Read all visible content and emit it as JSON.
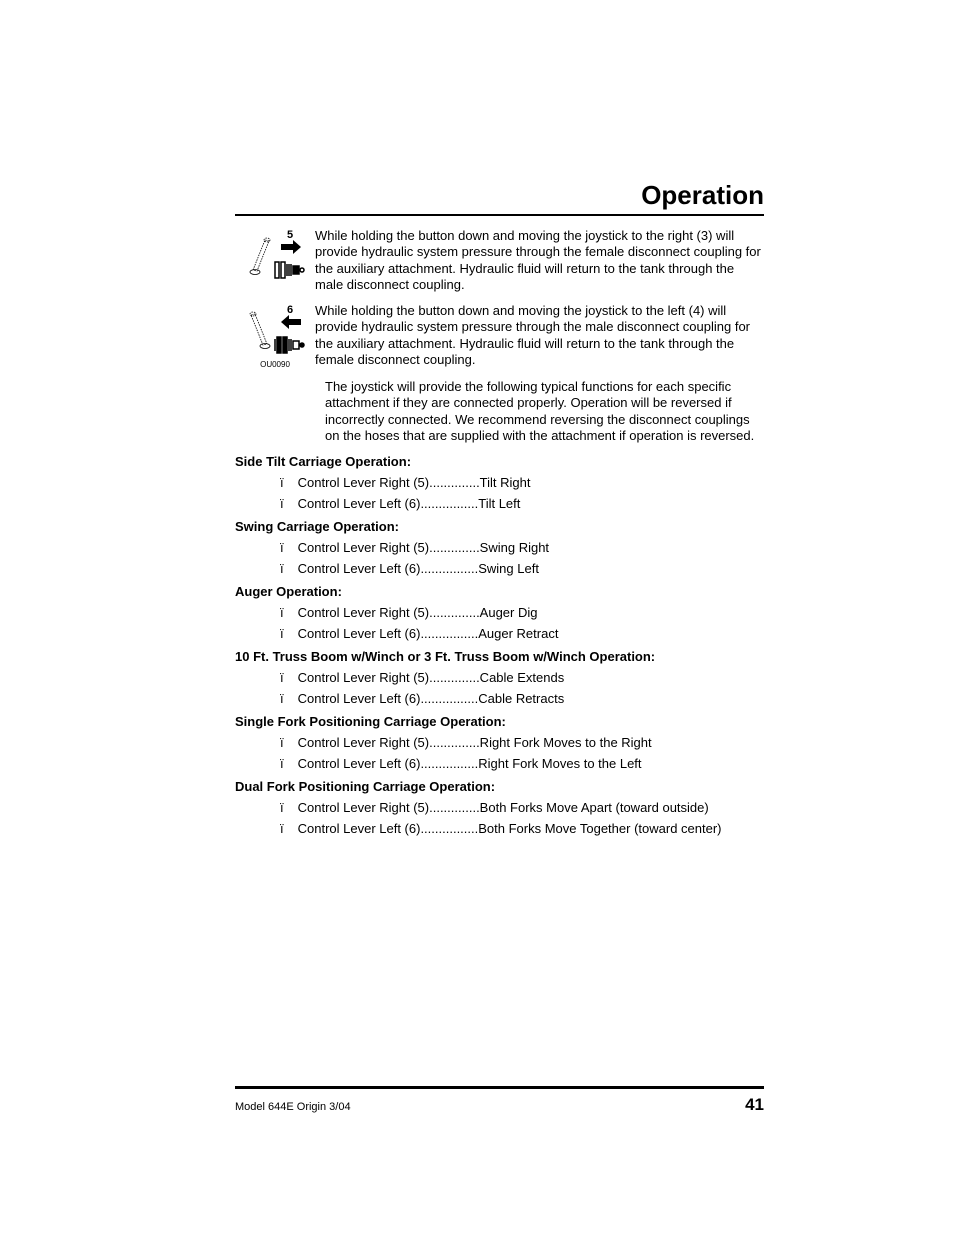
{
  "header": {
    "title": "Operation"
  },
  "paragraphs": {
    "p1": "While holding the button down and moving the joystick to the right (3) will provide hydraulic system pressure through the female disconnect coupling for the auxiliary attachment. Hydraulic fluid will return to the tank through the male disconnect coupling.",
    "p2": "While holding the button down and moving the joystick to the left (4) will provide hydraulic system pressure through the male disconnect coupling for the auxiliary attachment. Hydraulic fluid will return to the tank through the female disconnect coupling.",
    "p3": "The joystick will provide the following typical functions for each specific attachment if they are connected properly. Operation will be reversed if incorrectly connected. We recommend reversing the disconnect couplings on the hoses that are supplied with the attachment if operation is reversed."
  },
  "icons": {
    "icon5_label": "5",
    "icon6_label": "6",
    "ref": "OU0090"
  },
  "sections": [
    {
      "heading": "Side Tilt Carriage Operation:",
      "items": [
        {
          "lever": "Control Lever Right (5)",
          "dots": "..............",
          "action": "Tilt Right"
        },
        {
          "lever": "Control Lever Left (6)",
          "dots": "................",
          "action": "Tilt Left"
        }
      ]
    },
    {
      "heading": "Swing Carriage Operation:",
      "items": [
        {
          "lever": "Control Lever Right (5)",
          "dots": "..............",
          "action": "Swing Right"
        },
        {
          "lever": "Control Lever Left (6)",
          "dots": "................",
          "action": "Swing Left"
        }
      ]
    },
    {
      "heading": "Auger Operation:",
      "items": [
        {
          "lever": "Control Lever Right (5)",
          "dots": "..............",
          "action": "Auger Dig"
        },
        {
          "lever": "Control Lever Left (6)",
          "dots": "................",
          "action": "Auger Retract"
        }
      ]
    },
    {
      "heading": "10 Ft. Truss Boom w/Winch or 3 Ft. Truss Boom w/Winch Operation:",
      "items": [
        {
          "lever": "Control Lever Right (5)",
          "dots": "..............",
          "action": "Cable Extends"
        },
        {
          "lever": "Control Lever Left (6)",
          "dots": "................",
          "action": "Cable Retracts"
        }
      ]
    },
    {
      "heading": "Single Fork Positioning Carriage Operation:",
      "items": [
        {
          "lever": "Control Lever Right (5)",
          "dots": "..............",
          "action": "Right Fork Moves to the Right"
        },
        {
          "lever": "Control Lever Left (6)",
          "dots": "................",
          "action": "Right Fork Moves to the Left"
        }
      ]
    },
    {
      "heading": "Dual Fork Positioning Carriage Operation:",
      "items": [
        {
          "lever": "Control Lever Right (5)",
          "dots": "..............",
          "action": "Both Forks Move Apart (toward outside)"
        },
        {
          "lever": "Control Lever Left (6)",
          "dots": "................",
          "action": "Both Forks Move Together (toward center)"
        }
      ]
    }
  ],
  "footer": {
    "left": "Model 644E   Origin  3/04",
    "page": "41"
  },
  "style": {
    "bullet_char": "ï",
    "text_color": "#000000",
    "background": "#ffffff"
  }
}
